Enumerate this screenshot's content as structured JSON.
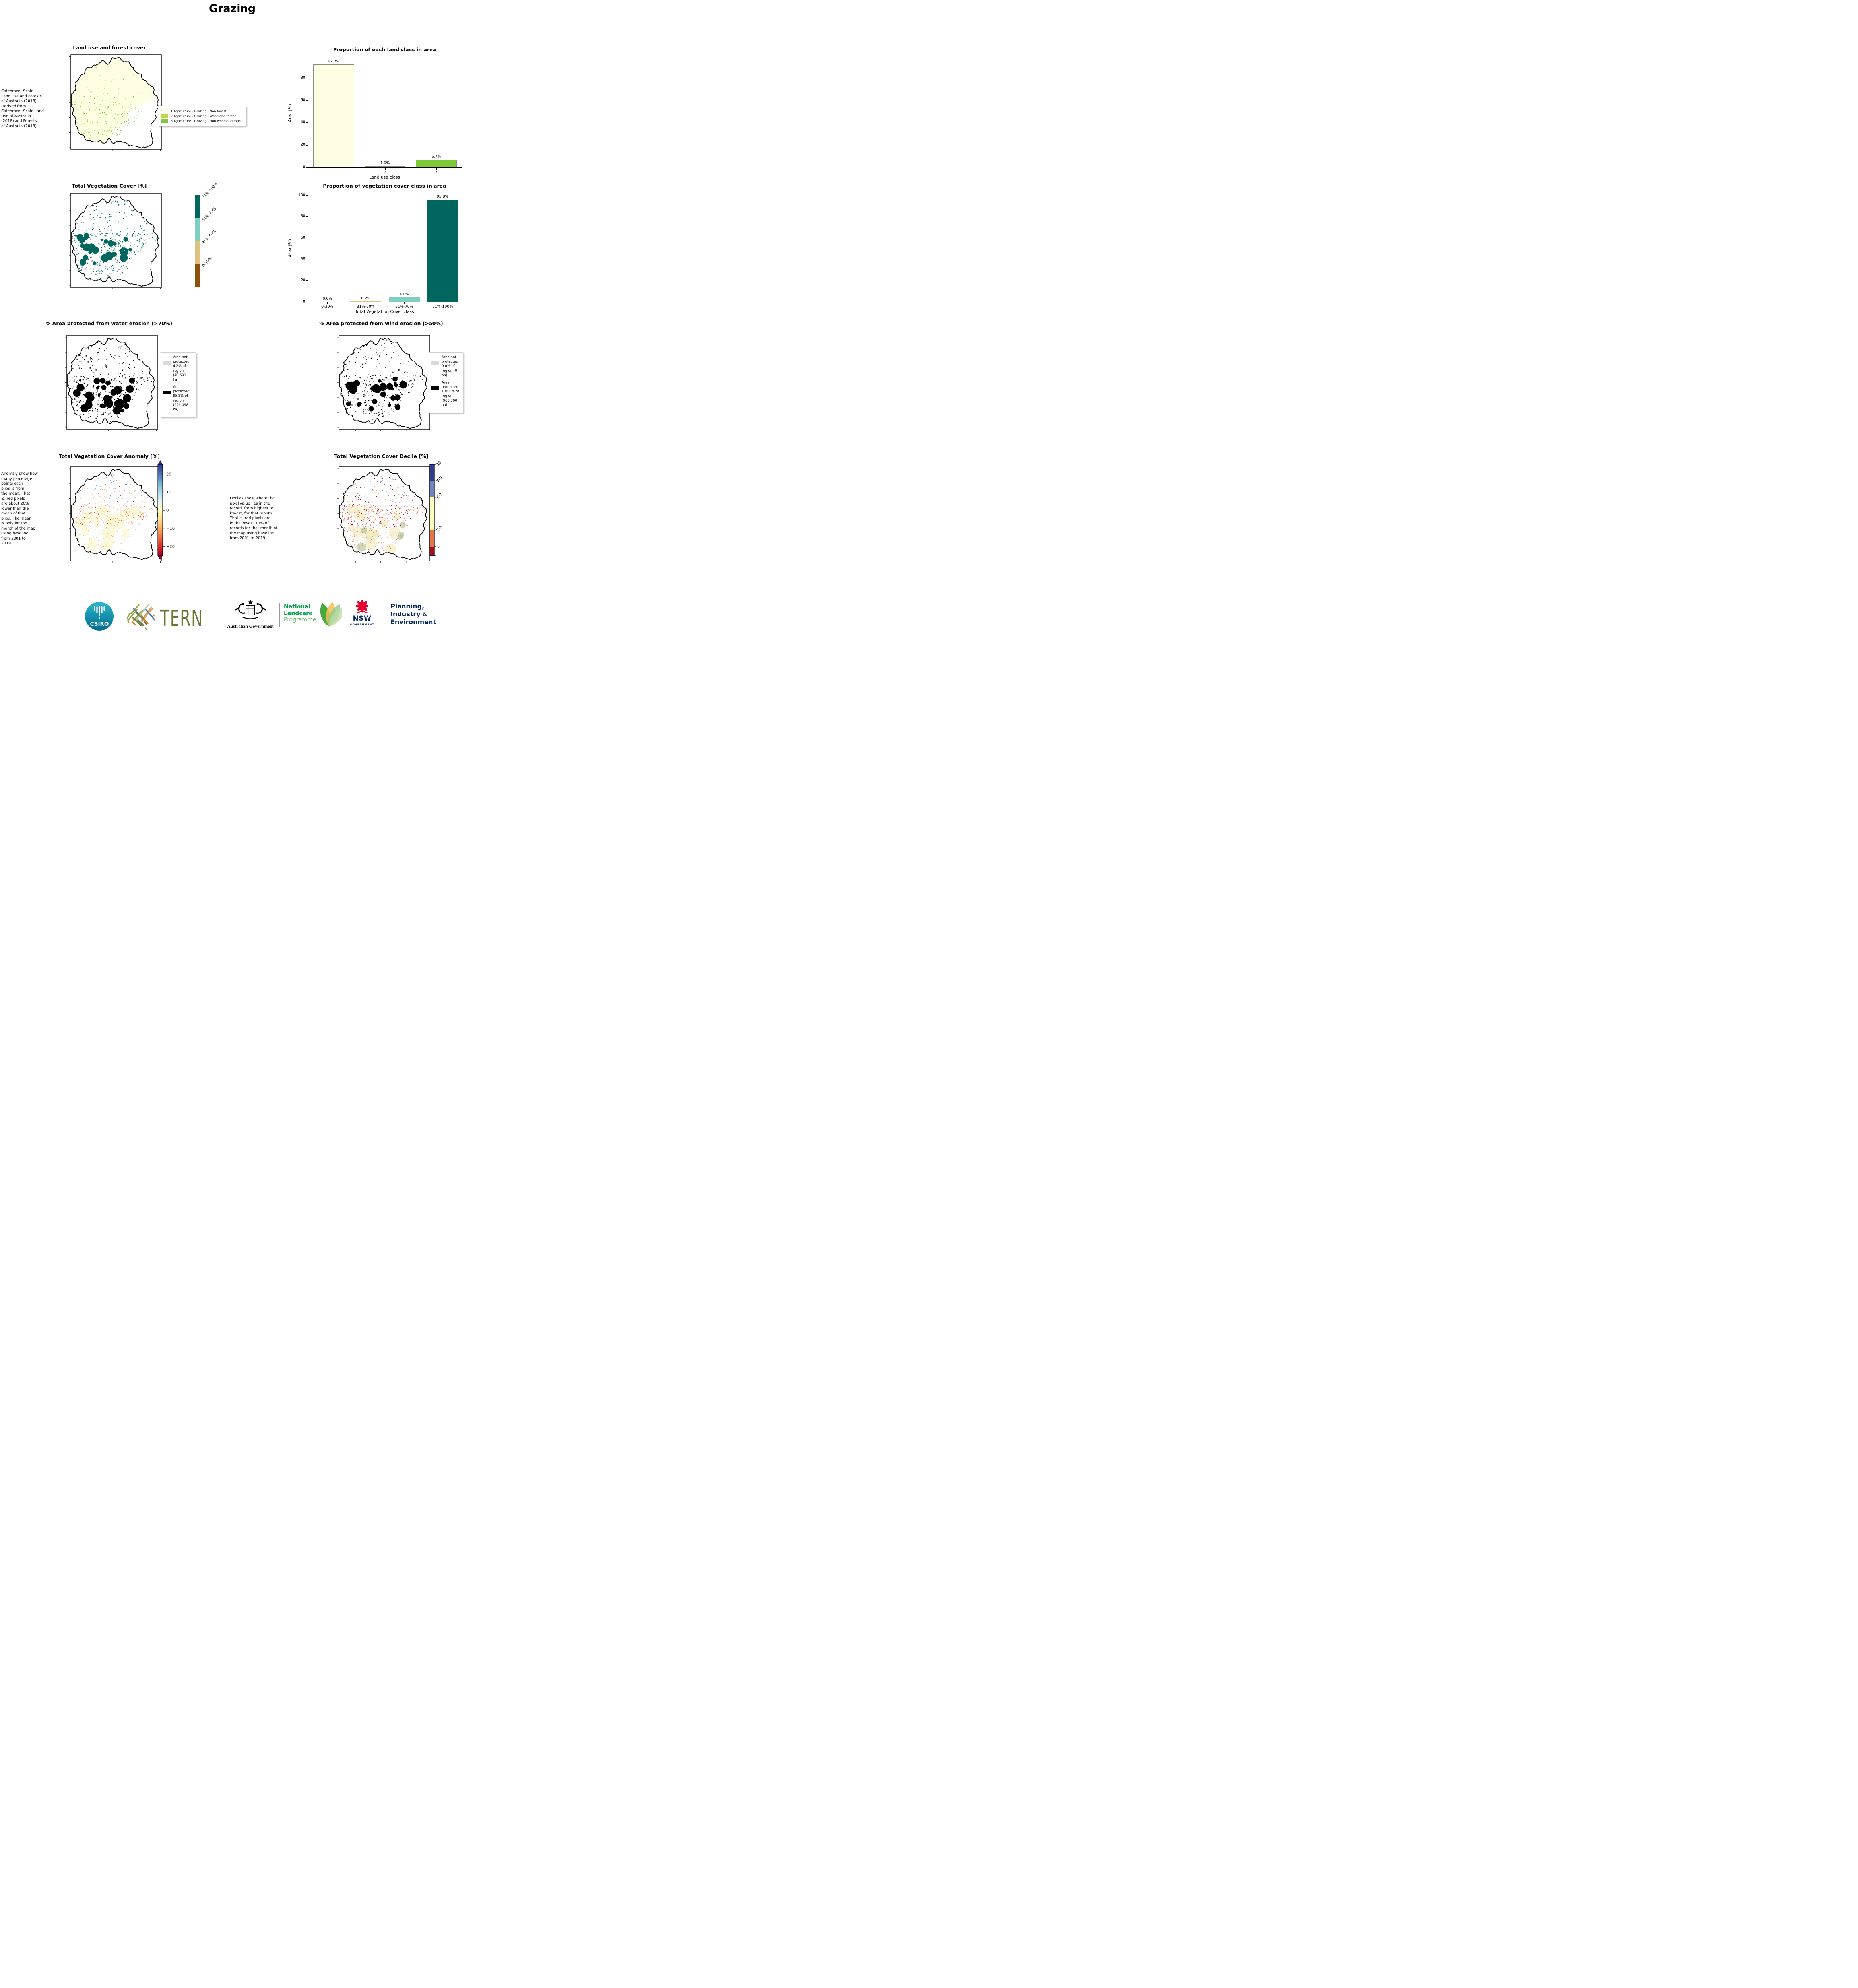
{
  "page_title": "Grazing",
  "captions": {
    "land_use_source": " Catchment Scale\nLand Use and Forests\nof Australia (2018)\nDerived from\nCatchment Scale Land\nUse of Australia\n(2018) and Forests\nof Australia (2018)",
    "anomaly": "Anomaly show how\nmany percetage\npoints each\npixel is from\nthe mean. That\nis, red pixels\nare about 20%\nlower than the\nmean of that\npixel. The mean\nis only for the\nmonth of the map\nusing baseline\nfrom 2001 to\n2019.",
    "decile": "Deciles show where the\npixel value lies in the\nrecord, from highest to\nlowest, for that month.\nThat is, red pixels are\nin the lowest 10% of\nrecords for that month of\nthe map using baseline\nfrom 2001 to 2019."
  },
  "maps": {
    "land_use": {
      "title": "Land use and forest cover"
    },
    "veg_cover": {
      "title": "Total Vegetation Cover [%]"
    },
    "water_erosion": {
      "title": "% Area protected from water erosion (>70%)",
      "legend": {
        "not_protected_label": "Area not\nprotected\n4.2% of\nregion\n(40,601\nha)",
        "protected_label": "Area\nprotected\n95.8% of\nregion\n(926,098\nha)",
        "not_protected_color": "#D9D9D9",
        "protected_color": "#000000"
      }
    },
    "wind_erosion": {
      "title": "% Area protected from wind erosion (>50%)",
      "legend": {
        "not_protected_label": "Area not\nprotected\n0.0% of\nregion (0\nha)",
        "protected_label": "Area\nprotected\n100.0% of\nregion\n(966,700\nha)",
        "not_protected_color": "#D9D9D9",
        "protected_color": "#000000"
      }
    },
    "anomaly": {
      "title": "Total Vegetation Cover Anomaly [%]"
    },
    "decile": {
      "title": "Total Vegetation Cover Decile [%]"
    }
  },
  "land_use_legend": {
    "items": [
      {
        "label": "1 Agriculture - Grazing - Non forest",
        "color": "#FEFEE3"
      },
      {
        "label": "2 Agriculture - Grazing - Woodland forest",
        "color": "#C3D54A"
      },
      {
        "label": "3 Agriculture - Grazing - Non-woodland forest",
        "color": "#7DC938"
      }
    ]
  },
  "chart_data": [
    {
      "type": "bar",
      "title": "Proportion of each land class in area",
      "categories": [
        "1",
        "2",
        "3"
      ],
      "values": [
        92.3,
        1.0,
        6.7
      ],
      "value_labels": [
        "92.3%",
        "1.0%",
        "6.7%"
      ],
      "bar_colors": [
        "#FEFEE3",
        "#C3D54A",
        "#7DC938"
      ],
      "bar_edge": "#8a8a8a",
      "xlabel": "Land use class",
      "ylabel": "Area (%)",
      "ylim": [
        0,
        97
      ],
      "yticks": [
        0,
        20,
        40,
        60,
        80
      ],
      "legend_position": "none",
      "grid": false
    },
    {
      "type": "bar",
      "title": "Proportion of vegetation cover class in area",
      "categories": [
        "0-30%",
        "31%-50%",
        "51%-70%",
        "71%-100%"
      ],
      "values": [
        0.0,
        0.2,
        4.0,
        95.8
      ],
      "value_labels": [
        "0.0%",
        "0.2%",
        "4.0%",
        "95.8%"
      ],
      "bar_colors": [
        "#8C510A",
        "#DFC27D",
        "#80CDC1",
        "#01665E"
      ],
      "bar_edge": "",
      "xlabel": "Total Vegetation Cover class",
      "ylabel": "Area (%)",
      "ylim": [
        0,
        100
      ],
      "yticks": [
        0,
        20,
        40,
        60,
        80,
        100
      ],
      "legend_position": "none",
      "grid": false
    }
  ],
  "colorbars": {
    "veg_cover": {
      "segments": [
        {
          "label": "71%-100%",
          "color": "#01665E"
        },
        {
          "label": "51%-70%",
          "color": "#80CDC1"
        },
        {
          "label": "31%-50%",
          "color": "#DFC27D"
        },
        {
          "label": "0-30%",
          "color": "#8C510A"
        }
      ]
    },
    "anomaly": {
      "ticks": [
        "20",
        "10",
        "0",
        "−10",
        "−20"
      ],
      "gradient": [
        "#313695",
        "#4575B4",
        "#74ADD1",
        "#ABD9E9",
        "#E0F3F8",
        "#FFFFBF",
        "#FEE090",
        "#FDAE61",
        "#F46D43",
        "#D73027",
        "#A50026"
      ]
    },
    "decile": {
      "segments": [
        {
          "label": "10",
          "color": "#2E3D8F",
          "size": 18
        },
        {
          "label": "8-9",
          "color": "#7084BE",
          "size": 18
        },
        {
          "label": "4-7",
          "color": "#FFFFBF",
          "size": 36
        },
        {
          "label": "2-3",
          "color": "#E8744B",
          "size": 18
        },
        {
          "label": "1",
          "color": "#A50E26",
          "size": 10
        }
      ]
    }
  },
  "footer": {
    "csiro_label": "CSIRO",
    "tern_label": "TERN",
    "aus_gov_label": "Australian Government",
    "landcare_line1": "National",
    "landcare_line2": "Landcare",
    "landcare_line3": "Programme",
    "nsw_label": "NSW",
    "nsw_sub_label": "GOVERNMENT",
    "dpie_line1": "Planning,",
    "dpie_line2a": "Industry ",
    "dpie_line2b": "&",
    "dpie_line3": "Environment",
    "colors": {
      "csiro_teal": "#00798F",
      "tern_olive": "#6A7433",
      "landcare_green": "#00A14B",
      "landcare_light_green": "#63BA68",
      "nsw_red": "#E4002B",
      "navy": "#002664"
    }
  }
}
